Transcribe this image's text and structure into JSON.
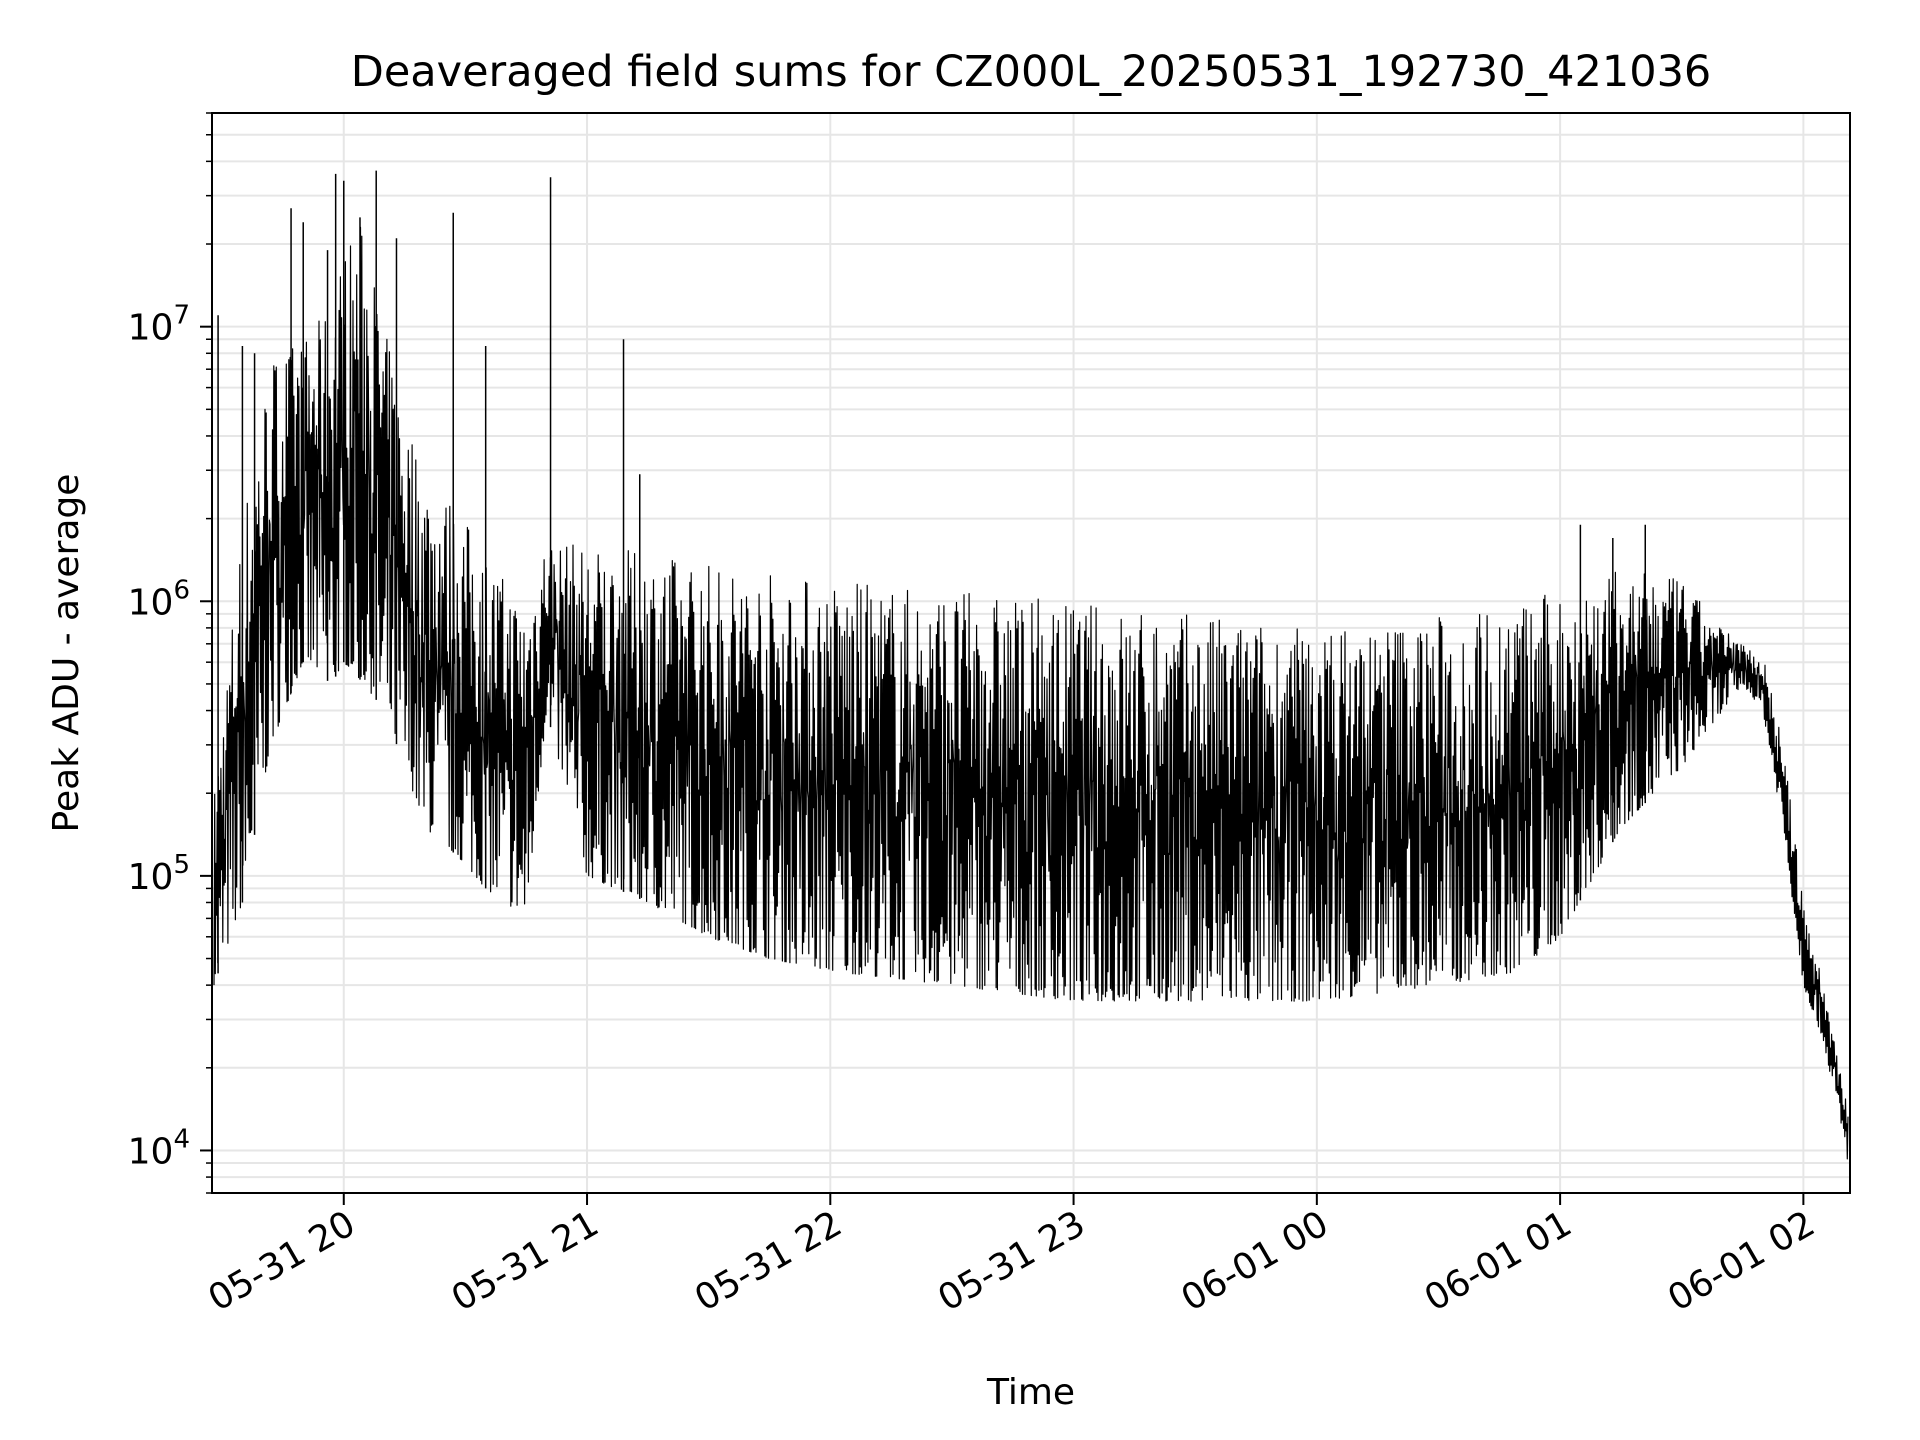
{
  "chart_data": {
    "type": "line",
    "title": "Deaveraged field sums for CZ000L_20250531_192730_421036",
    "xlabel": "Time",
    "ylabel": "Peak ADU - average",
    "y_scale": "log",
    "ylim": [
      7000,
      60000000
    ],
    "xlim": [
      "2025-05-31 19:27:30",
      "2025-06-01 02:11:30"
    ],
    "x_ticks": [
      {
        "value": "2025-05-31 20:00",
        "label": "05-31 20"
      },
      {
        "value": "2025-05-31 21:00",
        "label": "05-31 21"
      },
      {
        "value": "2025-05-31 22:00",
        "label": "05-31 22"
      },
      {
        "value": "2025-05-31 23:00",
        "label": "05-31 23"
      },
      {
        "value": "2025-06-01 00:00",
        "label": "06-01 00"
      },
      {
        "value": "2025-06-01 01:00",
        "label": "06-01 01"
      },
      {
        "value": "2025-06-01 02:00",
        "label": "06-01 02"
      }
    ],
    "y_ticks": [
      {
        "value": 10000,
        "mantissa": "10",
        "exponent": "4"
      },
      {
        "value": 100000,
        "mantissa": "10",
        "exponent": "5"
      },
      {
        "value": 1000000,
        "mantissa": "10",
        "exponent": "6"
      },
      {
        "value": 10000000,
        "mantissa": "10",
        "exponent": "7"
      }
    ],
    "grid": true,
    "legend": "none",
    "line_color": "#000000",
    "series": [
      {
        "x": [
          "2025-05-31 19:28",
          "2025-05-31 19:35",
          "2025-05-31 19:42",
          "2025-05-31 19:50",
          "2025-05-31 19:57",
          "2025-05-31 20:00",
          "2025-05-31 20:05",
          "2025-05-31 20:10",
          "2025-05-31 20:15",
          "2025-05-31 20:20",
          "2025-05-31 20:25",
          "2025-05-31 20:30",
          "2025-05-31 20:35",
          "2025-05-31 20:40",
          "2025-05-31 20:45",
          "2025-05-31 20:50",
          "2025-05-31 21:00",
          "2025-05-31 21:15",
          "2025-05-31 21:30",
          "2025-05-31 21:45",
          "2025-05-31 22:00",
          "2025-05-31 22:30",
          "2025-05-31 23:00",
          "2025-05-31 23:30",
          "2025-06-01 00:00",
          "2025-06-01 00:30",
          "2025-06-01 00:50",
          "2025-06-01 01:00",
          "2025-06-01 01:15",
          "2025-06-01 01:30",
          "2025-06-01 01:40",
          "2025-06-01 01:45",
          "2025-06-01 01:50",
          "2025-06-01 01:55",
          "2025-06-01 02:00",
          "2025-06-01 02:05",
          "2025-06-01 02:11"
        ],
        "low": [
          40000,
          80000,
          300000,
          600000,
          500000,
          600000,
          500000,
          400000,
          250000,
          150000,
          130000,
          110000,
          90000,
          80000,
          70000,
          400000,
          100000,
          80000,
          60000,
          50000,
          45000,
          40000,
          35000,
          35000,
          35000,
          40000,
          45000,
          60000,
          150000,
          250000,
          400000,
          500000,
          400000,
          150000,
          40000,
          25000,
          9000
        ],
        "high": [
          200000,
          2000000,
          8000000,
          9000000,
          12000000,
          20000000,
          25000000,
          10000000,
          5000000,
          3000000,
          2500000,
          2000000,
          1500000,
          1200000,
          1000000,
          1700000,
          1600000,
          1500000,
          1400000,
          1300000,
          1200000,
          1100000,
          1000000,
          900000,
          800000,
          900000,
          1000000,
          1100000,
          1300000,
          1200000,
          800000,
          700000,
          650000,
          300000,
          80000,
          40000,
          15000
        ],
        "spikes": [
          {
            "x": "2025-05-31 19:29",
            "y": 11000000
          },
          {
            "x": "2025-05-31 19:35",
            "y": 8500000
          },
          {
            "x": "2025-05-31 19:38",
            "y": 8000000
          },
          {
            "x": "2025-05-31 19:47",
            "y": 27000000
          },
          {
            "x": "2025-05-31 19:50",
            "y": 24000000
          },
          {
            "x": "2025-05-31 19:56",
            "y": 19000000
          },
          {
            "x": "2025-05-31 19:58",
            "y": 36000000
          },
          {
            "x": "2025-05-31 20:00",
            "y": 34000000
          },
          {
            "x": "2025-05-31 20:04",
            "y": 25000000
          },
          {
            "x": "2025-05-31 20:08",
            "y": 37000000
          },
          {
            "x": "2025-05-31 20:13",
            "y": 21000000
          },
          {
            "x": "2025-05-31 20:27",
            "y": 26000000
          },
          {
            "x": "2025-05-31 20:35",
            "y": 8500000
          },
          {
            "x": "2025-05-31 20:51",
            "y": 35000000
          },
          {
            "x": "2025-05-31 21:09",
            "y": 9000000
          },
          {
            "x": "2025-05-31 21:13",
            "y": 2900000
          },
          {
            "x": "2025-06-01 01:05",
            "y": 1900000
          },
          {
            "x": "2025-06-01 01:13",
            "y": 1700000
          },
          {
            "x": "2025-06-01 01:21",
            "y": 1900000
          }
        ]
      }
    ]
  }
}
